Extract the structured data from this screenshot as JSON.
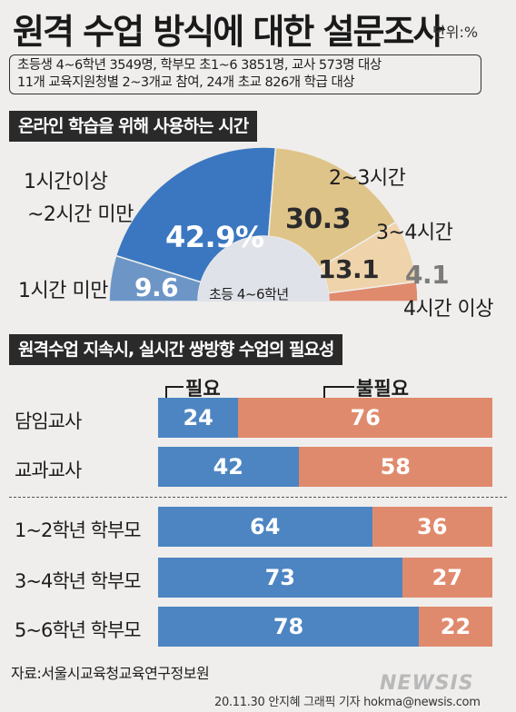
{
  "header": {
    "title": "원격 수업 방식에 대한 설문조사",
    "unit": "단위:%"
  },
  "survey_info": {
    "line1": "초등생 4~6학년 3549명, 학부모 초1~6 3851명, 교사 573명 대상",
    "line2": "11개 교육지원청별 2~3개교 참여, 24개 초교 826개 학급 대상"
  },
  "section1": {
    "title": "온라인 학습을 위해 사용하는 시간"
  },
  "section2": {
    "title": "원격수업 지속시, 실시간 쌍방향 수업의 필요성"
  },
  "colors": {
    "under1h": "#6d96c7",
    "h1to2": "#3a77c0",
    "h2to3": "#dfc48a",
    "h3to4": "#efd3ab",
    "over4": "#e08a6d",
    "need": "#4d85c2",
    "noneed": "#e08a6d"
  },
  "chart_data": [
    {
      "type": "pie",
      "variant": "half-donut",
      "center_label": "초등 4~6학년",
      "categories": [
        "1시간 미만",
        "1시간이상 ~2시간 미만",
        "2~3시간",
        "3~4시간",
        "4시간 이상"
      ],
      "label_lines": {
        "h1to2_line1": "1시간이상",
        "h1to2_line2": "~2시간 미만"
      },
      "values": [
        9.6,
        42.9,
        30.3,
        13.1,
        4.1
      ],
      "value_labels": [
        "9.6",
        "42.9%",
        "30.3",
        "13.1",
        "4.1"
      ]
    },
    {
      "type": "bar",
      "orientation": "horizontal",
      "stacked": true,
      "legend": [
        "필요",
        "불필요"
      ],
      "categories": [
        "담임교사",
        "교과교사",
        "1~2학년 학부모",
        "3~4학년 학부모",
        "5~6학년 학부모"
      ],
      "series": [
        {
          "name": "필요",
          "values": [
            24,
            42,
            64,
            73,
            78
          ]
        },
        {
          "name": "불필요",
          "values": [
            76,
            58,
            36,
            27,
            22
          ]
        }
      ]
    }
  ],
  "footer": {
    "source": "자료:서울시교육청교육연구정보원",
    "credit": "20.11.30 안지혜 그래픽 기자 hokma@newsis.com",
    "watermark": "NEWSIS"
  }
}
